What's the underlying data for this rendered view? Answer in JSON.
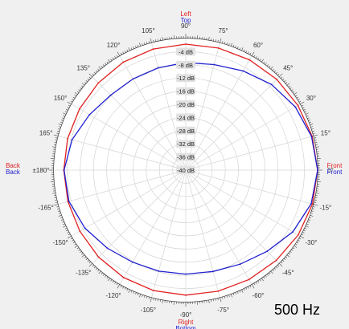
{
  "chart_data": {
    "type": "polar",
    "annotation": "500 Hz",
    "direction_labels": {
      "top": [
        {
          "text": "Left",
          "color": "#e02020"
        },
        {
          "text": "Top",
          "color": "#2020d0"
        }
      ],
      "bottom": [
        {
          "text": "Right",
          "color": "#e02020"
        },
        {
          "text": "Bottom",
          "color": "#2020d0"
        }
      ],
      "left": [
        {
          "text": "Back",
          "color": "#e02020"
        },
        {
          "text": "Back",
          "color": "#2020d0"
        }
      ],
      "right": [
        {
          "text": "Front",
          "color": "#e02020"
        },
        {
          "text": "Front",
          "color": "#2020d0"
        }
      ]
    },
    "angle_labels": [
      {
        "deg": 0,
        "text": "0°"
      },
      {
        "deg": 15,
        "text": "15°"
      },
      {
        "deg": 30,
        "text": "30°"
      },
      {
        "deg": 45,
        "text": "45°"
      },
      {
        "deg": 60,
        "text": "60°"
      },
      {
        "deg": 75,
        "text": "75°"
      },
      {
        "deg": 90,
        "text": "90°"
      },
      {
        "deg": 105,
        "text": "105°"
      },
      {
        "deg": 120,
        "text": "120°"
      },
      {
        "deg": 135,
        "text": "135°"
      },
      {
        "deg": 150,
        "text": "150°"
      },
      {
        "deg": 165,
        "text": "165°"
      },
      {
        "deg": 180,
        "text": "±180°"
      },
      {
        "deg": -165,
        "text": "-165°"
      },
      {
        "deg": -150,
        "text": "-150°"
      },
      {
        "deg": -135,
        "text": "-135°"
      },
      {
        "deg": -120,
        "text": "-120°"
      },
      {
        "deg": -105,
        "text": "-105°"
      },
      {
        "deg": -90,
        "text": "-90°"
      },
      {
        "deg": -75,
        "text": "-75°"
      },
      {
        "deg": -60,
        "text": "-60°"
      },
      {
        "deg": -45,
        "text": "-45°"
      },
      {
        "deg": -30,
        "text": "-30°"
      },
      {
        "deg": -15,
        "text": "-15°"
      }
    ],
    "rings": [
      {
        "db": -4,
        "text": "-4 dB"
      },
      {
        "db": -8,
        "text": "-8 dB"
      },
      {
        "db": -12,
        "text": "-12 dB"
      },
      {
        "db": -16,
        "text": "-16 dB"
      },
      {
        "db": -20,
        "text": "-20 dB"
      },
      {
        "db": -24,
        "text": "-24 dB"
      },
      {
        "db": -28,
        "text": "-28 dB"
      },
      {
        "db": -32,
        "text": "-32 dB"
      },
      {
        "db": -36,
        "text": "-36 dB"
      },
      {
        "db": -40,
        "text": "-40 dB"
      }
    ],
    "r_range_db": [
      -40,
      0
    ],
    "grid": true,
    "series": [
      {
        "color": "#e02020",
        "angles_deg": [
          0,
          15,
          30,
          45,
          60,
          75,
          90,
          105,
          120,
          135,
          150,
          165,
          180,
          -165,
          -150,
          -135,
          -120,
          -105,
          -90,
          -75,
          -60,
          -45,
          -30,
          -15
        ],
        "values_db": [
          0,
          -0.3,
          -0.7,
          -1.0,
          -1.3,
          -1.6,
          -1.7,
          -1.9,
          -2.1,
          -2.5,
          -2.8,
          -2.9,
          -3.0,
          -3.0,
          -2.9,
          -2.6,
          -2.3,
          -2.1,
          -2.0,
          -1.9,
          -1.6,
          -1.2,
          -0.6,
          -0.2
        ]
      },
      {
        "color": "#2020d0",
        "angles_deg": [
          0,
          15,
          30,
          45,
          60,
          75,
          90,
          105,
          120,
          135,
          150,
          165,
          180,
          -165,
          -150,
          -135,
          -120,
          -105,
          -90,
          -75,
          -60,
          -45,
          -30,
          -15
        ],
        "values_db": [
          0,
          -0.5,
          -1.6,
          -3.2,
          -5.2,
          -6.8,
          -7.3,
          -7.8,
          -8.0,
          -7.8,
          -6.3,
          -4.3,
          -3.1,
          -3.3,
          -4.7,
          -6.4,
          -7.7,
          -8.2,
          -8.4,
          -8.1,
          -7.0,
          -5.1,
          -2.5,
          -0.6
        ]
      }
    ]
  }
}
